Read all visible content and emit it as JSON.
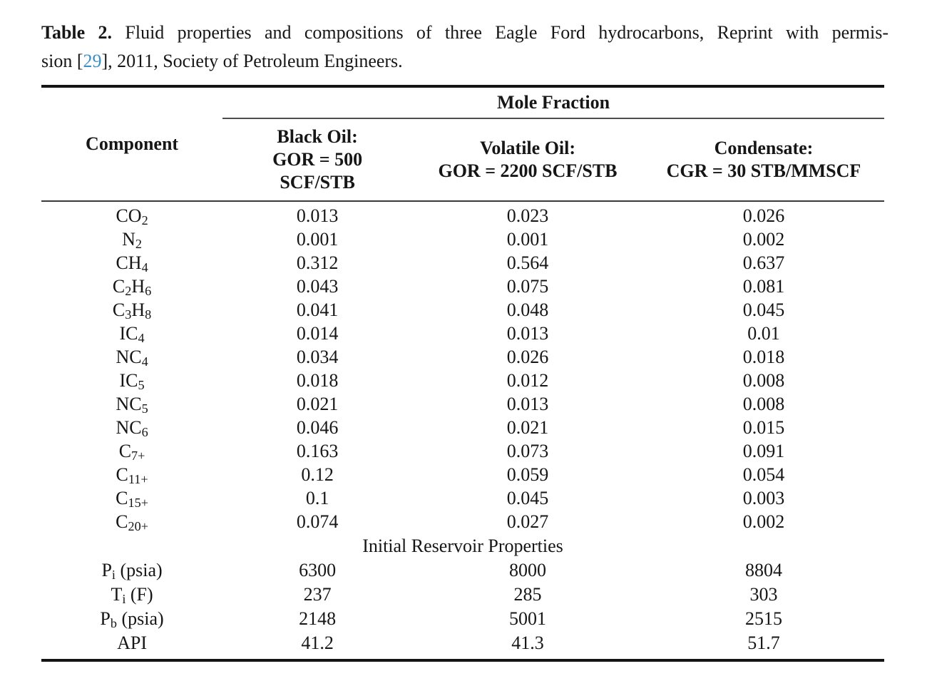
{
  "colors": {
    "citation": "#3a8fc7",
    "text": "#161616",
    "rule": "#141414"
  },
  "caption": {
    "label_bold": "Table 2.",
    "line1_rest": " Fluid properties and compositions of three Eagle Ford hydrocarbons, Reprint with permis-",
    "line2_pre": "sion [",
    "citation": "29",
    "line2_post": "], 2011, Society of Petroleum Engineers."
  },
  "table": {
    "component_header": "Component",
    "group_header": "Mole Fraction",
    "column_headers": [
      "Black Oil:\nGOR = 500\nSCF/STB",
      "Volatile Oil:\nGOR = 2200 SCF/STB",
      "Condensate:\nCGR = 30 STB/MMSCF"
    ],
    "components": [
      {
        "label": "CO_{2}",
        "values": [
          "0.013",
          "0.023",
          "0.026"
        ]
      },
      {
        "label": "N_{2}",
        "values": [
          "0.001",
          "0.001",
          "0.002"
        ]
      },
      {
        "label": "CH_{4}",
        "values": [
          "0.312",
          "0.564",
          "0.637"
        ]
      },
      {
        "label": "C_{2}H_{6}",
        "values": [
          "0.043",
          "0.075",
          "0.081"
        ]
      },
      {
        "label": "C_{3}H_{8}",
        "values": [
          "0.041",
          "0.048",
          "0.045"
        ]
      },
      {
        "label": "IC_{4}",
        "values": [
          "0.014",
          "0.013",
          "0.01"
        ]
      },
      {
        "label": "NC_{4}",
        "values": [
          "0.034",
          "0.026",
          "0.018"
        ]
      },
      {
        "label": "IC_{5}",
        "values": [
          "0.018",
          "0.012",
          "0.008"
        ]
      },
      {
        "label": "NC_{5}",
        "values": [
          "0.021",
          "0.013",
          "0.008"
        ]
      },
      {
        "label": "NC_{6}",
        "values": [
          "0.046",
          "0.021",
          "0.015"
        ]
      },
      {
        "label": "C_{7+}",
        "values": [
          "0.163",
          "0.073",
          "0.091"
        ]
      },
      {
        "label": "C_{11+}",
        "values": [
          "0.12",
          "0.059",
          "0.054"
        ]
      },
      {
        "label": "C_{15+}",
        "values": [
          "0.1",
          "0.045",
          "0.003"
        ]
      },
      {
        "label": "C_{20+}",
        "values": [
          "0.074",
          "0.027",
          "0.002"
        ]
      }
    ],
    "section_header": "Initial Reservoir Properties",
    "properties": [
      {
        "label": "P_{i} (psia)",
        "values": [
          "6300",
          "8000",
          "8804"
        ]
      },
      {
        "label": "T_{i} (F)",
        "values": [
          "237",
          "285",
          "303"
        ]
      },
      {
        "label": "P_{b} (psia)",
        "values": [
          "2148",
          "5001",
          "2515"
        ]
      },
      {
        "label": "API",
        "values": [
          "41.2",
          "41.3",
          "51.7"
        ]
      }
    ]
  }
}
